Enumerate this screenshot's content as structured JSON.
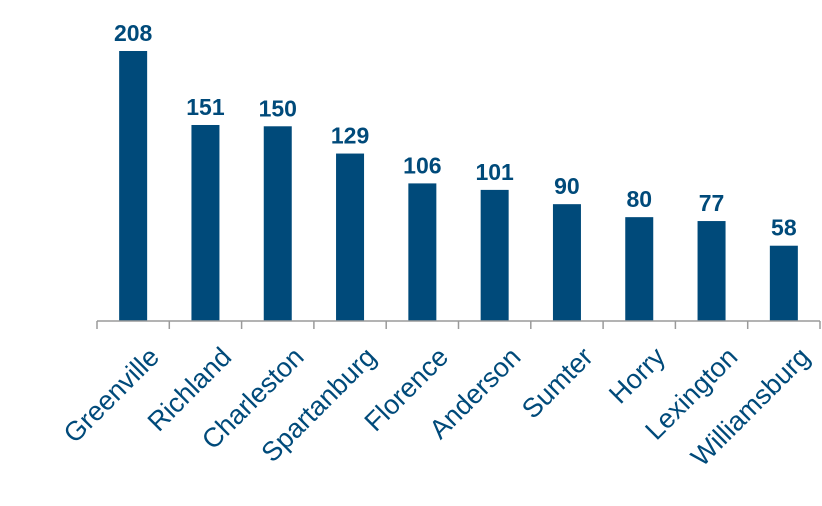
{
  "chart_data": {
    "type": "bar",
    "categories": [
      "Greenville",
      "Richland",
      "Charleston",
      "Spartanburg",
      "Florence",
      "Anderson",
      "Sumter",
      "Horry",
      "Lexington",
      "Williamsburg"
    ],
    "values": [
      208,
      151,
      150,
      129,
      106,
      101,
      90,
      80,
      77,
      58
    ],
    "ylim": [
      0,
      208
    ],
    "grid": false,
    "legend": "none",
    "colors": {
      "bar": "#004a7a",
      "label": "#004a7a",
      "axis": "#9a9a9a",
      "category_text": "#004a7a"
    }
  }
}
